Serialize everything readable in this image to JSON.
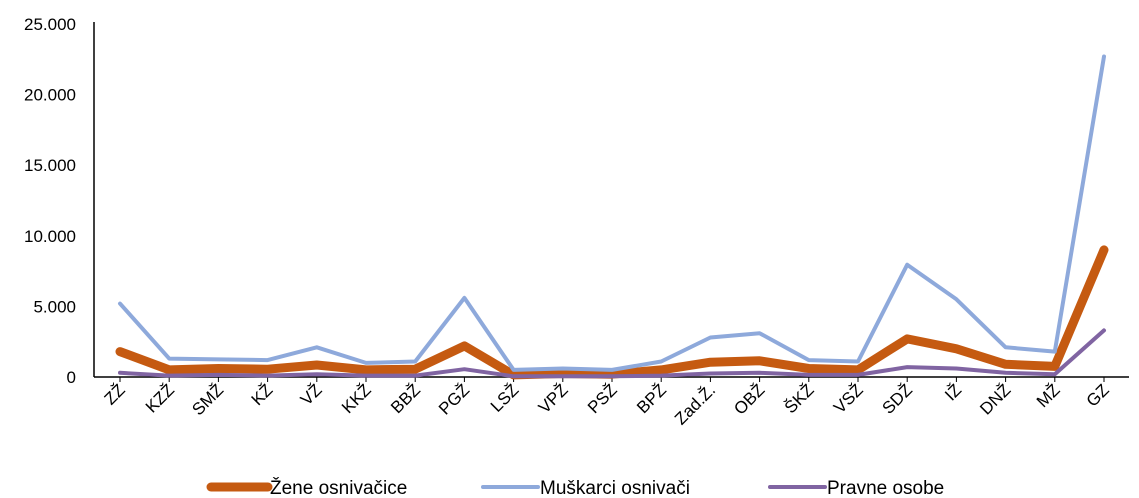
{
  "chart_data": {
    "type": "line",
    "categories": [
      "ZŽ",
      "KZŽ",
      "SMŽ",
      "KŽ",
      "VŽ",
      "KKŽ",
      "BBŽ",
      "PGŽ",
      "LSŽ",
      "VPŽ",
      "PSŽ",
      "BPŽ",
      "Zad.Ž.",
      "OBŽ",
      "ŠKŽ",
      "VSŽ",
      "SDŽ",
      "IŽ",
      "DNŽ",
      "MŽ",
      "GZ"
    ],
    "series": [
      {
        "name": "Žene osnivačice",
        "color": "#C55A11",
        "values": [
          1800,
          500,
          600,
          550,
          850,
          500,
          550,
          2200,
          150,
          250,
          200,
          500,
          1050,
          1150,
          600,
          500,
          2700,
          2000,
          900,
          750,
          9000
        ]
      },
      {
        "name": "Muškarci osnivači",
        "color": "#8EA9DB",
        "values": [
          5200,
          1300,
          1250,
          1200,
          2100,
          1000,
          1100,
          5600,
          500,
          600,
          500,
          1100,
          2800,
          3100,
          1200,
          1100,
          7950,
          5500,
          2100,
          1800,
          22700
        ]
      },
      {
        "name": "Pravne osobe",
        "color": "#8064A2",
        "values": [
          300,
          100,
          150,
          100,
          200,
          100,
          100,
          550,
          50,
          50,
          50,
          100,
          250,
          300,
          150,
          150,
          700,
          600,
          300,
          200,
          3300
        ]
      }
    ],
    "ylim": [
      0,
      25000
    ],
    "yticks": [
      "0",
      "5.000",
      "10.000",
      "15.000",
      "20.000",
      "25.000"
    ],
    "ytick_values": [
      0,
      5000,
      10000,
      15000,
      20000,
      25000
    ],
    "legend_position": "bottom",
    "grid": false
  }
}
